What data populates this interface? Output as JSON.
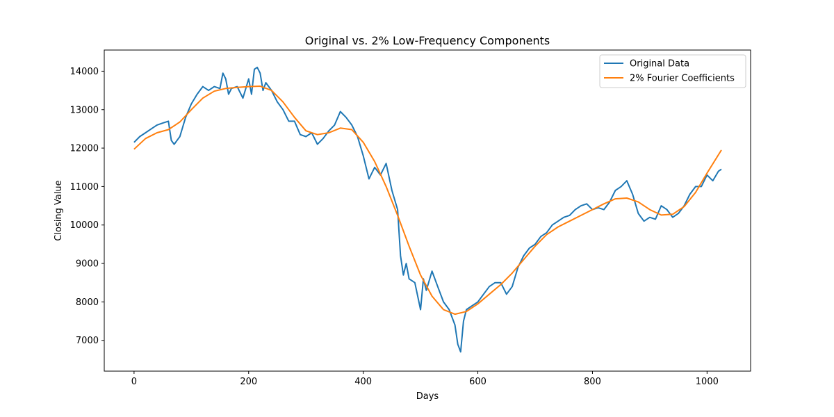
{
  "chart_data": {
    "type": "line",
    "title": "Original vs. 2% Low-Frequency Components",
    "xlabel": "Days",
    "ylabel": "Closing Value",
    "xlim": [
      -52,
      1076
    ],
    "ylim": [
      6200,
      14550
    ],
    "xticks": [
      0,
      200,
      400,
      600,
      800,
      1000
    ],
    "yticks": [
      7000,
      8000,
      9000,
      10000,
      11000,
      12000,
      13000,
      14000
    ],
    "grid": false,
    "legend_position": "top-right",
    "series": [
      {
        "name": "Original Data",
        "color": "#1f77b4",
        "x": [
          0,
          10,
          20,
          30,
          40,
          50,
          60,
          65,
          70,
          80,
          90,
          100,
          110,
          120,
          130,
          140,
          150,
          155,
          160,
          165,
          170,
          180,
          190,
          200,
          205,
          210,
          215,
          220,
          225,
          230,
          240,
          250,
          260,
          270,
          280,
          290,
          300,
          310,
          320,
          330,
          340,
          350,
          360,
          370,
          380,
          390,
          400,
          410,
          420,
          430,
          440,
          450,
          460,
          465,
          470,
          475,
          480,
          490,
          500,
          505,
          510,
          520,
          530,
          540,
          550,
          560,
          565,
          570,
          575,
          580,
          590,
          600,
          610,
          620,
          630,
          640,
          650,
          660,
          670,
          680,
          690,
          700,
          710,
          720,
          730,
          740,
          750,
          760,
          770,
          780,
          790,
          800,
          810,
          820,
          830,
          840,
          850,
          860,
          870,
          880,
          890,
          900,
          910,
          920,
          930,
          940,
          950,
          960,
          970,
          980,
          990,
          1000,
          1010,
          1020,
          1025
        ],
        "y": [
          12150,
          12300,
          12400,
          12500,
          12600,
          12650,
          12700,
          12200,
          12100,
          12300,
          12800,
          13150,
          13400,
          13600,
          13500,
          13600,
          13550,
          13950,
          13800,
          13400,
          13550,
          13600,
          13300,
          13800,
          13400,
          14050,
          14100,
          13950,
          13500,
          13700,
          13500,
          13200,
          13000,
          12700,
          12700,
          12350,
          12300,
          12400,
          12100,
          12250,
          12450,
          12600,
          12950,
          12800,
          12600,
          12300,
          11800,
          11200,
          11500,
          11300,
          11600,
          10900,
          10400,
          9200,
          8700,
          9000,
          8600,
          8500,
          7800,
          8600,
          8300,
          8800,
          8400,
          8000,
          7800,
          7400,
          6900,
          6700,
          7500,
          7800,
          7900,
          8000,
          8200,
          8400,
          8500,
          8500,
          8200,
          8400,
          8900,
          9200,
          9400,
          9500,
          9700,
          9800,
          10000,
          10100,
          10200,
          10250,
          10400,
          10500,
          10550,
          10400,
          10450,
          10400,
          10600,
          10900,
          11000,
          11150,
          10800,
          10300,
          10100,
          10200,
          10150,
          10500,
          10400,
          10200,
          10300,
          10500,
          10800,
          11000,
          11000,
          11300,
          11150,
          11400,
          11450
        ]
      },
      {
        "name": "2% Fourier Coefficients",
        "color": "#ff7f0e",
        "x": [
          0,
          20,
          40,
          60,
          80,
          100,
          120,
          140,
          160,
          180,
          200,
          220,
          240,
          260,
          280,
          300,
          320,
          340,
          360,
          380,
          400,
          420,
          440,
          460,
          480,
          500,
          520,
          540,
          560,
          580,
          600,
          620,
          640,
          660,
          680,
          700,
          720,
          740,
          760,
          780,
          800,
          820,
          840,
          860,
          880,
          900,
          920,
          940,
          960,
          980,
          1000,
          1025
        ],
        "y": [
          11970,
          12250,
          12400,
          12480,
          12680,
          13000,
          13300,
          13480,
          13550,
          13580,
          13600,
          13610,
          13500,
          13200,
          12800,
          12450,
          12350,
          12400,
          12520,
          12480,
          12150,
          11650,
          11000,
          10250,
          9450,
          8700,
          8150,
          7800,
          7680,
          7750,
          7950,
          8200,
          8450,
          8750,
          9100,
          9450,
          9750,
          9950,
          10100,
          10250,
          10400,
          10550,
          10680,
          10700,
          10600,
          10400,
          10260,
          10280,
          10480,
          10850,
          11350,
          11950
        ]
      }
    ]
  }
}
